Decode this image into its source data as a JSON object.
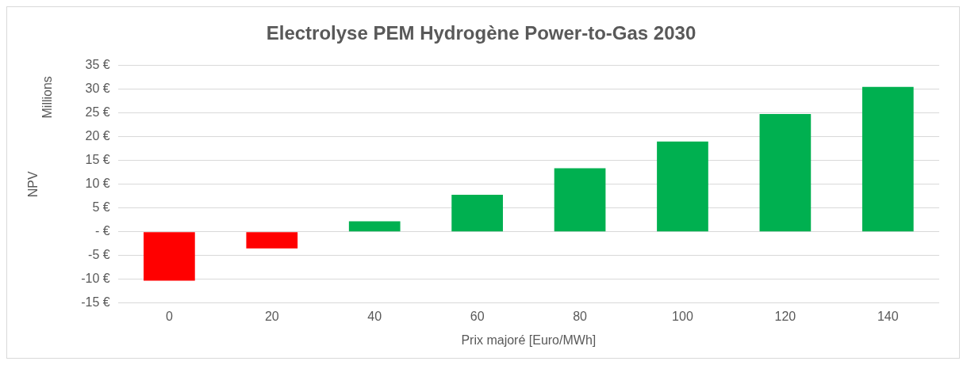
{
  "chart_data": {
    "type": "bar",
    "title": "Electrolyse PEM Hydrogène Power-to-Gas 2030",
    "xlabel": "Prix majoré [Euro/MWh]",
    "ylabel": "NPV",
    "annotations": [
      "Millions"
    ],
    "categories": [
      "0",
      "20",
      "40",
      "60",
      "80",
      "100",
      "120",
      "140"
    ],
    "values": [
      -10.3,
      -3.5,
      2.2,
      7.8,
      13.4,
      19.0,
      24.8,
      30.5
    ],
    "colors": [
      "#ff0000",
      "#ff0000",
      "#00b050",
      "#00b050",
      "#00b050",
      "#00b050",
      "#00b050",
      "#00b050"
    ],
    "ylim": [
      -15,
      35
    ],
    "yticks": [
      {
        "value": -15,
        "label": "-15 €"
      },
      {
        "value": -10,
        "label": "-10 €"
      },
      {
        "value": -5,
        "label": "-5 €"
      },
      {
        "value": 0,
        "label": "- €"
      },
      {
        "value": 5,
        "label": "5 €"
      },
      {
        "value": 10,
        "label": "10 €"
      },
      {
        "value": 15,
        "label": "15 €"
      },
      {
        "value": 20,
        "label": "20 €"
      },
      {
        "value": 25,
        "label": "25 €"
      },
      {
        "value": 30,
        "label": "30 €"
      },
      {
        "value": 35,
        "label": "35 €"
      }
    ],
    "grid": "y",
    "legend": false
  }
}
